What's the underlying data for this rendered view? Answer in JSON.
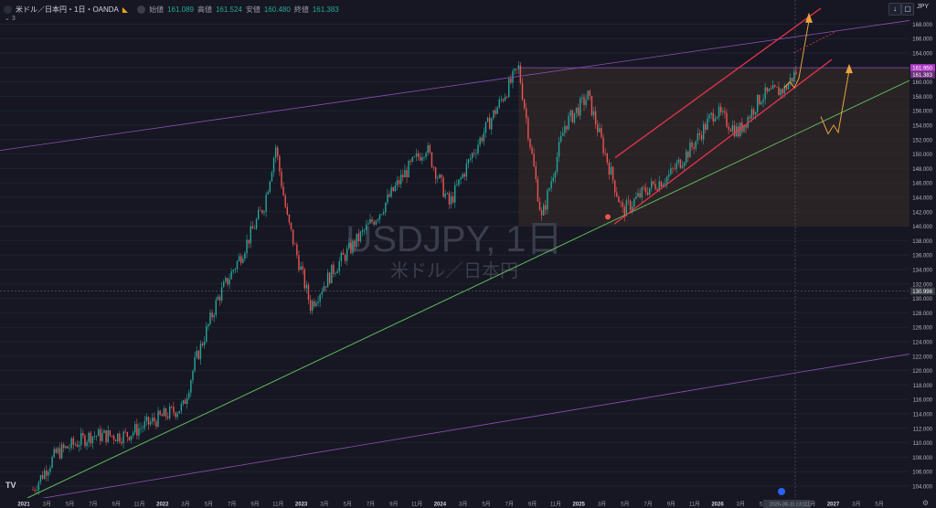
{
  "header": {
    "symbol": "米ドル／日本円・1日・OANDA",
    "open_label": "始値",
    "open": "161.089",
    "high_label": "高値",
    "high": "161.524",
    "low_label": "安値",
    "low": "160.480",
    "close_label": "終値",
    "close": "161.383",
    "indicator_count": "3",
    "currency": "JPY"
  },
  "watermark": {
    "line1": "USDJPY, 1日",
    "line2": "米ドル／日本円"
  },
  "colors": {
    "background": "#161722",
    "candle_up": "#26a69a",
    "candle_down": "#ef5350",
    "support_line": "#5fb85a",
    "outer_channel": "#8e4fb5",
    "rising_channel": "#e8334a",
    "projection_arrow": "#e8a33a",
    "box_fill": "#3a2e2a",
    "price_label": "#b03bc8"
  },
  "chart_data": {
    "type": "line",
    "ylim": [
      103,
      170
    ],
    "y_ticks": [
      "104.000",
      "106.000",
      "108.000",
      "110.000",
      "112.000",
      "114.000",
      "116.000",
      "118.000",
      "120.000",
      "122.000",
      "124.000",
      "126.000",
      "128.000",
      "130.000",
      "132.000",
      "134.000",
      "136.000",
      "138.000",
      "140.000",
      "142.000",
      "144.000",
      "146.000",
      "148.000",
      "150.000",
      "152.000",
      "154.000",
      "156.000",
      "158.000",
      "160.000",
      "162.000",
      "164.000",
      "166.000",
      "168.000"
    ],
    "x_ticks": [
      "2021",
      "3月",
      "5月",
      "7月",
      "9月",
      "11月",
      "2022",
      "3月",
      "5月",
      "7月",
      "9月",
      "11月",
      "2023",
      "3月",
      "5月",
      "7月",
      "9月",
      "11月",
      "2024",
      "3月",
      "5月",
      "7月",
      "9月",
      "11月",
      "2025",
      "3月",
      "5月",
      "7月",
      "9月",
      "11月",
      "2026",
      "3月",
      "5月",
      "2026-08-11 (火)",
      "11月",
      "2027",
      "3月",
      "5月"
    ],
    "price_labels": [
      {
        "value": 161.95,
        "text": "161.950"
      },
      {
        "value": 161.383,
        "text": "161.383"
      },
      {
        "value": 130.998,
        "text": "130.998"
      }
    ],
    "series": [
      {
        "x": [
          "2021-01",
          "2021-03",
          "2021-06",
          "2021-09",
          "2021-12",
          "2022-02",
          "2022-03",
          "2022-05",
          "2022-07",
          "2022-09",
          "2022-10",
          "2022-11",
          "2023-01",
          "2023-03",
          "2023-05",
          "2023-07",
          "2023-09",
          "2023-11",
          "2024-01",
          "2024-03",
          "2024-05",
          "2024-07",
          "2024-09",
          "2024-11",
          "2025-01",
          "2025-04",
          "2025-06",
          "2025-08",
          "2025-10",
          "2025-12",
          "2026-02",
          "2026-04",
          "2026-06",
          "2026-07"
        ],
        "values": [
          103.5,
          108.5,
          111,
          111,
          113.5,
          115,
          121,
          130,
          136,
          143,
          151,
          141,
          129,
          134,
          138,
          142,
          147,
          151,
          143,
          150,
          156,
          161.9,
          141,
          154,
          158,
          142,
          145,
          147,
          151,
          156,
          153,
          158,
          159,
          161.4
        ]
      }
    ]
  }
}
